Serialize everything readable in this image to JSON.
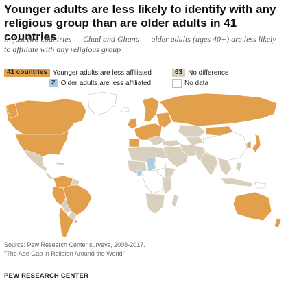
{
  "title": "Younger adults are less likely to identify with any religious group than are older adults in 41 countries",
  "subtitle": "In just two countries — Chad and Ghana — older adults (ages 40+) are less likely to affiliate with any religious group",
  "legend": {
    "younger": {
      "count": "41 countries",
      "label": "Younger adults are less affiliated",
      "color": "#e2a04c"
    },
    "older": {
      "count": "2",
      "label": "Older adults are less affiliated",
      "color": "#a9cce4"
    },
    "nodiff": {
      "count": "63",
      "label": "No difference",
      "color": "#d8cfbd"
    },
    "nodata": {
      "label": "No data",
      "color": "#ffffff"
    }
  },
  "source": {
    "line1": "Source: Pew Research Center surveys, 2008-2017.",
    "line2": "\"The Age Gap in Religion Around the World\""
  },
  "brand": "PEW RESEARCH CENTER"
}
